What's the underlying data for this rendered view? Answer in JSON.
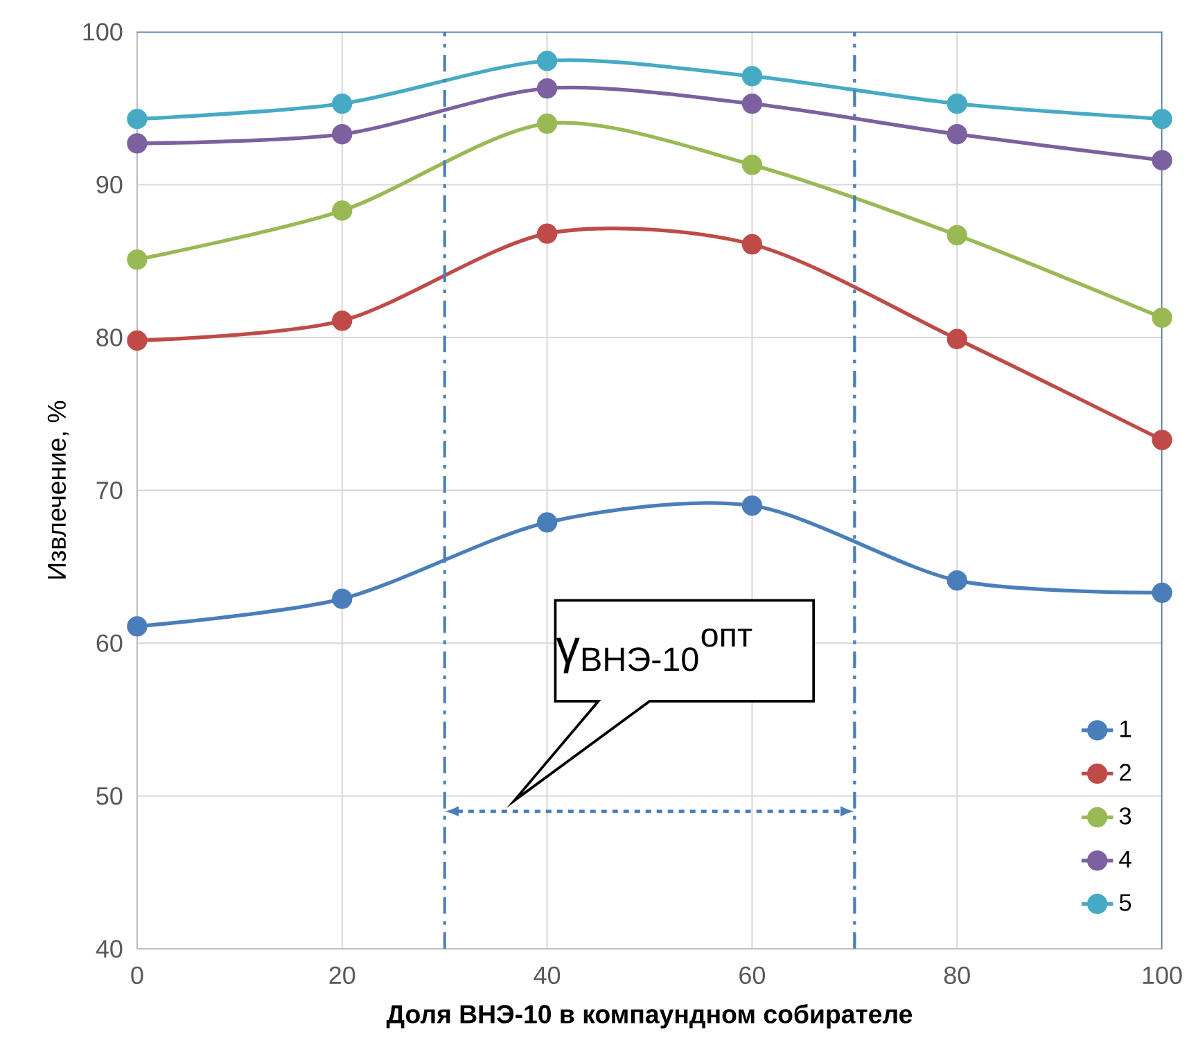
{
  "chart_data": {
    "type": "line",
    "xlabel": "**Доля ВНЭ-10 в компаундном собирателе**",
    "ylabel": "Извлечение, %",
    "x": [
      0,
      20,
      40,
      60,
      80,
      100
    ],
    "series": [
      {
        "name": "1",
        "color": "#4a7ebb",
        "values": [
          61.1,
          62.9,
          67.9,
          69.0,
          64.1,
          63.3
        ]
      },
      {
        "name": "2",
        "color": "#be4b48",
        "values": [
          79.8,
          81.1,
          86.8,
          86.1,
          79.9,
          73.3
        ]
      },
      {
        "name": "3",
        "color": "#98b954",
        "values": [
          85.1,
          88.3,
          94.0,
          91.3,
          86.7,
          81.3
        ]
      },
      {
        "name": "4",
        "color": "#7d60a0",
        "values": [
          92.7,
          93.3,
          96.3,
          95.3,
          93.3,
          91.6
        ]
      },
      {
        "name": "5",
        "color": "#46aac5",
        "values": [
          94.3,
          95.3,
          98.1,
          97.1,
          95.3,
          94.3
        ]
      }
    ],
    "xlim": [
      0,
      100
    ],
    "ylim": [
      40,
      100
    ],
    "xticks": [
      0,
      20,
      40,
      60,
      80,
      100
    ],
    "yticks": [
      40,
      50,
      60,
      70,
      80,
      90,
      100
    ],
    "ref_lines": [
      {
        "axis": "x",
        "value": 30,
        "color": "#4a7ebb",
        "line_style": "dashdot"
      },
      {
        "axis": "x",
        "value": 70,
        "color": "#4a7ebb",
        "line_style": "dashdot"
      }
    ],
    "annotations": [
      "γ$_{ВНЭ-10}$$^{опт}$"
    ],
    "grid": true,
    "legend": "bottom right",
    "marker": "circle"
  }
}
